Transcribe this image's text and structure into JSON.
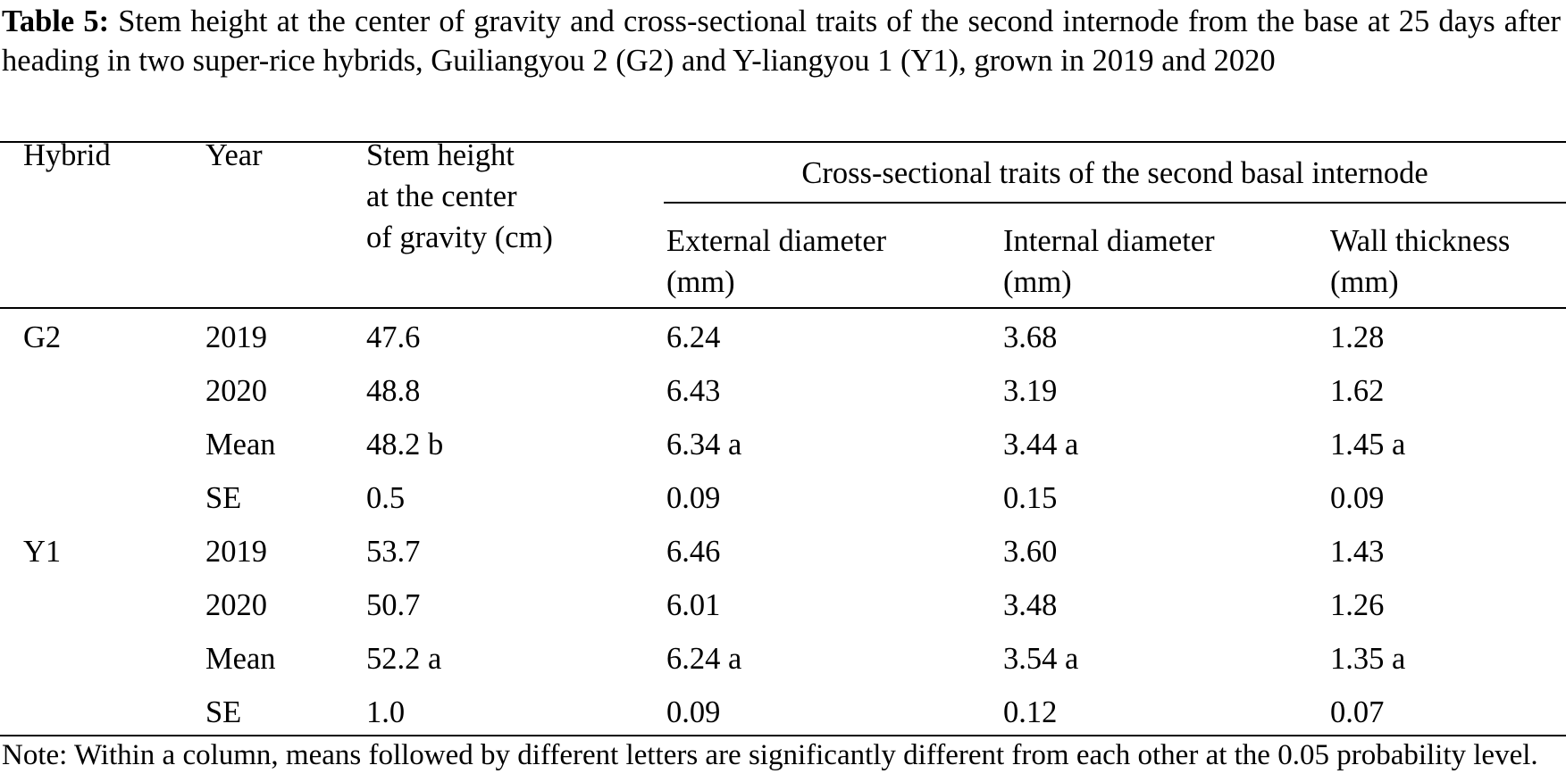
{
  "caption": {
    "label": "Table 5:",
    "text": " Stem height at the center of gravity and cross-sectional traits of the second internode from the base at 25 days after heading in two super-rice hybrids, Guiliangyou 2 (G2) and Y-liangyou 1 (Y1), grown in 2019 and 2020"
  },
  "headers": {
    "hybrid": "Hybrid",
    "year": "Year",
    "stem_height_line1": "Stem height",
    "stem_height_line2": "at the center",
    "stem_height_line3": "of gravity (cm)",
    "group": "Cross-sectional traits of the second basal internode",
    "external_line1": "External diameter",
    "external_line2": "(mm)",
    "internal_line1": "Internal diameter",
    "internal_line2": "(mm)",
    "wall_line1": "Wall thickness",
    "wall_line2": "(mm)"
  },
  "rows": [
    {
      "hybrid": "G2",
      "year": "2019",
      "stem": "47.6",
      "ext": "6.24",
      "int": "3.68",
      "wall": "1.28"
    },
    {
      "hybrid": "",
      "year": "2020",
      "stem": "48.8",
      "ext": "6.43",
      "int": "3.19",
      "wall": "1.62"
    },
    {
      "hybrid": "",
      "year": "Mean",
      "stem": "48.2 b",
      "ext": "6.34 a",
      "int": "3.44 a",
      "wall": "1.45 a"
    },
    {
      "hybrid": "",
      "year": "SE",
      "stem": "0.5",
      "ext": "0.09",
      "int": "0.15",
      "wall": "0.09"
    },
    {
      "hybrid": "Y1",
      "year": "2019",
      "stem": "53.7",
      "ext": "6.46",
      "int": "3.60",
      "wall": "1.43"
    },
    {
      "hybrid": "",
      "year": "2020",
      "stem": "50.7",
      "ext": "6.01",
      "int": "3.48",
      "wall": "1.26"
    },
    {
      "hybrid": "",
      "year": "Mean",
      "stem": "52.2 a",
      "ext": "6.24 a",
      "int": "3.54 a",
      "wall": "1.35 a"
    },
    {
      "hybrid": "",
      "year": "SE",
      "stem": "1.0",
      "ext": "0.09",
      "int": "0.12",
      "wall": "0.07"
    }
  ],
  "note": "Note: Within a column, means followed by different letters are significantly different from each other at the 0.05 probability level."
}
